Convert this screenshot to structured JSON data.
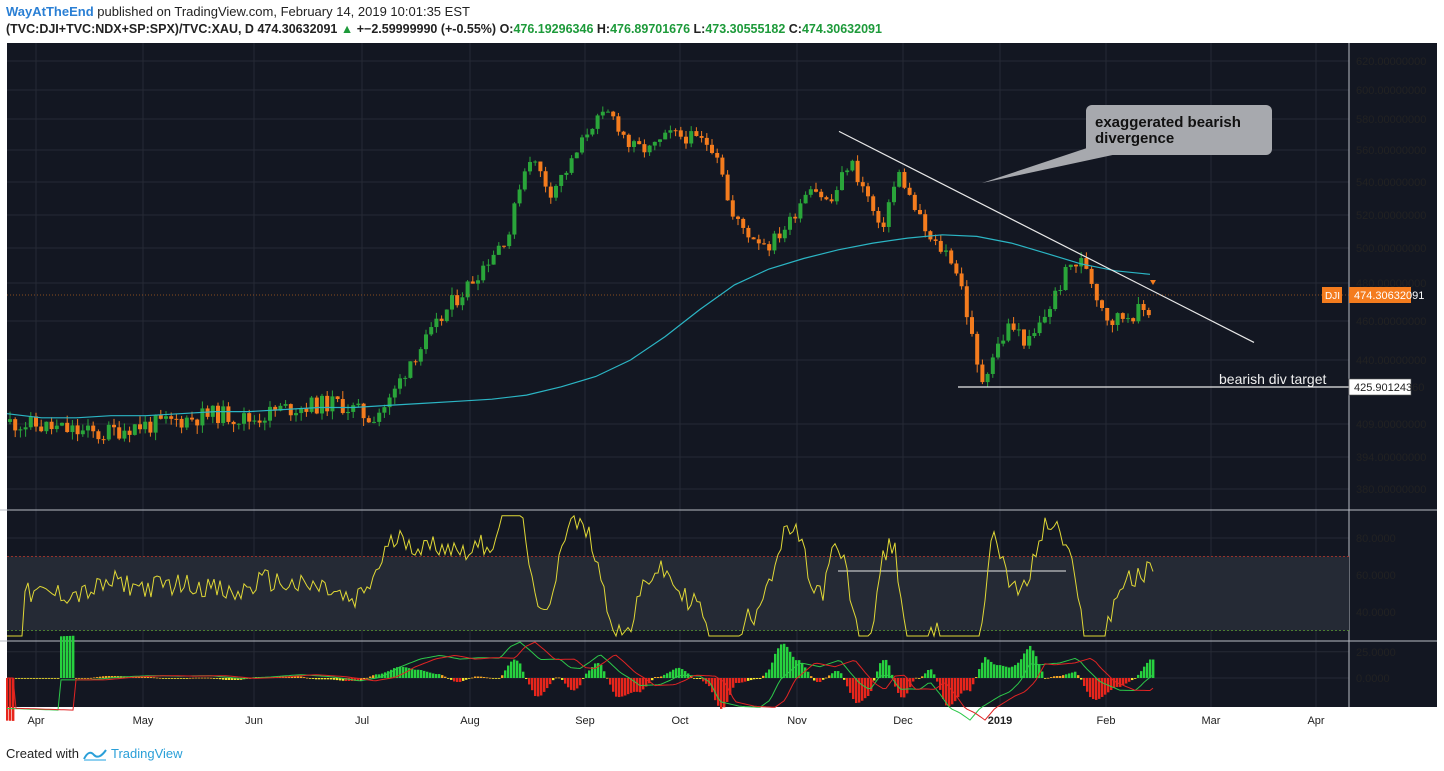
{
  "header": {
    "author": "WayAtTheEnd",
    "published": "published on TradingView.com, February 14, 2019 10:01:35 EST",
    "symbol": "(TVC:DJI+TVC:NDX+SP:SPX)/TVC:XAU, D",
    "price": "474.30632091",
    "change": "+−2.59999990 (+-0.55%)",
    "o_label": "O:",
    "o": "476.19296346",
    "h_label": "H:",
    "h": "476.89701676",
    "l_label": "L:",
    "l": "473.30555182",
    "c_label": "C:",
    "c": "474.30632091"
  },
  "footer": {
    "created_with": "Created with",
    "brand": "TradingView",
    "logo_icon": "tradingview-logo-icon"
  },
  "colors": {
    "background": "#131722",
    "grid": "#262a35",
    "up": "#2aa53a",
    "down": "#f47c1e",
    "ma": "#2bb5c4",
    "rsi": "#e0d836",
    "macd": "#2dc84a",
    "signal": "#e02424",
    "price_tag": "#f47c1e"
  },
  "chart_data": [
    {
      "type": "candlestick",
      "pane": "price",
      "x_labels": [
        "Apr",
        "May",
        "Jun",
        "Jul",
        "Aug",
        "Sep",
        "Oct",
        "Nov",
        "Dec",
        "2019",
        "Feb",
        "Mar",
        "Apr"
      ],
      "y_ticks": [
        "620.00000000",
        "600.00000000",
        "580.00000000",
        "560.00000000",
        "540.00000000",
        "520.00000000",
        "500.00000000",
        "480.00000000",
        "460.00000000",
        "440.00000000",
        "409.00000000",
        "394.00000000",
        "380.00000000"
      ],
      "y_tick_values": [
        620,
        600,
        580,
        560,
        540,
        520,
        500,
        480,
        460,
        440,
        409,
        394,
        380
      ],
      "series_label": "DJI",
      "last_price": "474.30632091",
      "target_value": "425.90124360",
      "annotations": [
        "exaggerated bearish divergence",
        "bearish div target"
      ],
      "trendline": [
        [
          560,
          572
        ],
        [
          1,
          449
        ]
      ],
      "ma_path": [
        [
          0,
          414
        ],
        [
          20,
          412
        ],
        [
          40,
          412
        ],
        [
          60,
          413
        ],
        [
          80,
          413
        ],
        [
          100,
          414
        ],
        [
          120,
          415
        ],
        [
          140,
          415
        ],
        [
          160,
          416
        ],
        [
          180,
          417
        ],
        [
          200,
          417
        ],
        [
          220,
          418
        ],
        [
          240,
          419
        ],
        [
          260,
          420
        ],
        [
          280,
          421
        ],
        [
          300,
          423
        ],
        [
          320,
          427
        ],
        [
          340,
          432
        ],
        [
          360,
          440
        ],
        [
          380,
          452
        ],
        [
          400,
          466
        ],
        [
          420,
          479
        ],
        [
          440,
          488
        ],
        [
          460,
          494
        ],
        [
          480,
          499
        ],
        [
          500,
          503
        ],
        [
          520,
          506
        ],
        [
          540,
          508
        ],
        [
          560,
          507
        ],
        [
          580,
          503
        ],
        [
          600,
          497
        ],
        [
          620,
          491
        ],
        [
          640,
          487
        ],
        [
          660,
          485
        ]
      ]
    },
    {
      "type": "line",
      "pane": "rsi",
      "y_ticks": [
        "80.0000",
        "60.0000",
        "40.0000"
      ],
      "y_tick_values": [
        80,
        60,
        40
      ],
      "upper_band": 70,
      "lower_band": 30
    },
    {
      "type": "histogram",
      "pane": "macd",
      "y_ticks": [
        "25.0000",
        "0.0000"
      ],
      "y_tick_values": [
        25,
        0
      ]
    }
  ]
}
